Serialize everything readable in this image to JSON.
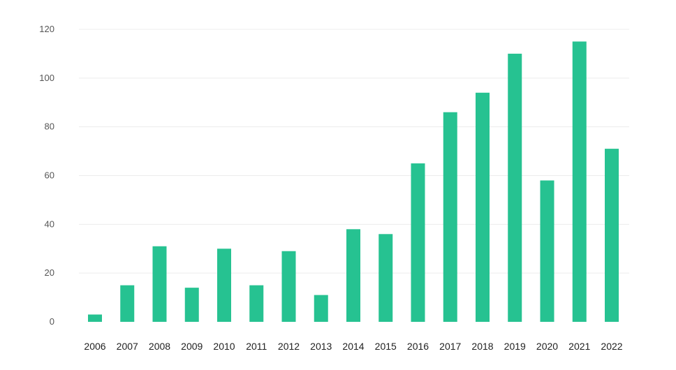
{
  "chart_data": {
    "type": "bar",
    "categories": [
      "2006",
      "2007",
      "2008",
      "2009",
      "2010",
      "2011",
      "2012",
      "2013",
      "2014",
      "2015",
      "2016",
      "2017",
      "2018",
      "2019",
      "2020",
      "2021",
      "2022"
    ],
    "values": [
      3,
      15,
      31,
      14,
      30,
      15,
      29,
      11,
      38,
      36,
      65,
      86,
      94,
      110,
      58,
      115,
      71
    ],
    "ylim": [
      0,
      120
    ],
    "yticks": [
      0,
      20,
      40,
      60,
      80,
      100,
      120
    ],
    "title": "",
    "xlabel": "",
    "ylabel": "",
    "grid": true,
    "bar_color": "#26c291"
  }
}
